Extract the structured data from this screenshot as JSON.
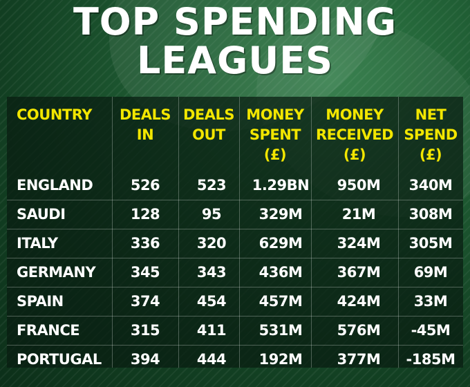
{
  "title": {
    "line1": "TOP SPENDING",
    "line2": "LEAGUES"
  },
  "table": {
    "headers": [
      {
        "lines": [
          "COUNTRY"
        ]
      },
      {
        "lines": [
          "DEALS",
          "IN"
        ]
      },
      {
        "lines": [
          "DEALS",
          "OUT"
        ]
      },
      {
        "lines": [
          "MONEY",
          "SPENT",
          "(£)"
        ]
      },
      {
        "lines": [
          "MONEY",
          "RECEIVED",
          "(£)"
        ]
      },
      {
        "lines": [
          "NET",
          "SPEND",
          "(£)"
        ]
      }
    ],
    "rows": [
      {
        "country": "ENGLAND",
        "deals_in": "526",
        "deals_out": "523",
        "money_spent": "1.29BN",
        "money_received": "950M",
        "net_spend": "340M"
      },
      {
        "country": "SAUDI",
        "deals_in": "128",
        "deals_out": "95",
        "money_spent": "329M",
        "money_received": "21M",
        "net_spend": "308M"
      },
      {
        "country": "ITALY",
        "deals_in": "336",
        "deals_out": "320",
        "money_spent": "629M",
        "money_received": "324M",
        "net_spend": "305M"
      },
      {
        "country": "GERMANY",
        "deals_in": "345",
        "deals_out": "343",
        "money_spent": "436M",
        "money_received": "367M",
        "net_spend": "69M"
      },
      {
        "country": "SPAIN",
        "deals_in": "374",
        "deals_out": "454",
        "money_spent": "457M",
        "money_received": "424M",
        "net_spend": "33M"
      },
      {
        "country": "FRANCE",
        "deals_in": "315",
        "deals_out": "411",
        "money_spent": "531M",
        "money_received": "576M",
        "net_spend": "-45M"
      },
      {
        "country": "PORTUGAL",
        "deals_in": "394",
        "deals_out": "444",
        "money_spent": "192M",
        "money_received": "377M",
        "net_spend": "-185M"
      }
    ]
  },
  "colors": {
    "header_text": "#f2e600",
    "body_text": "#ffffff",
    "background": "#1f5c33"
  }
}
